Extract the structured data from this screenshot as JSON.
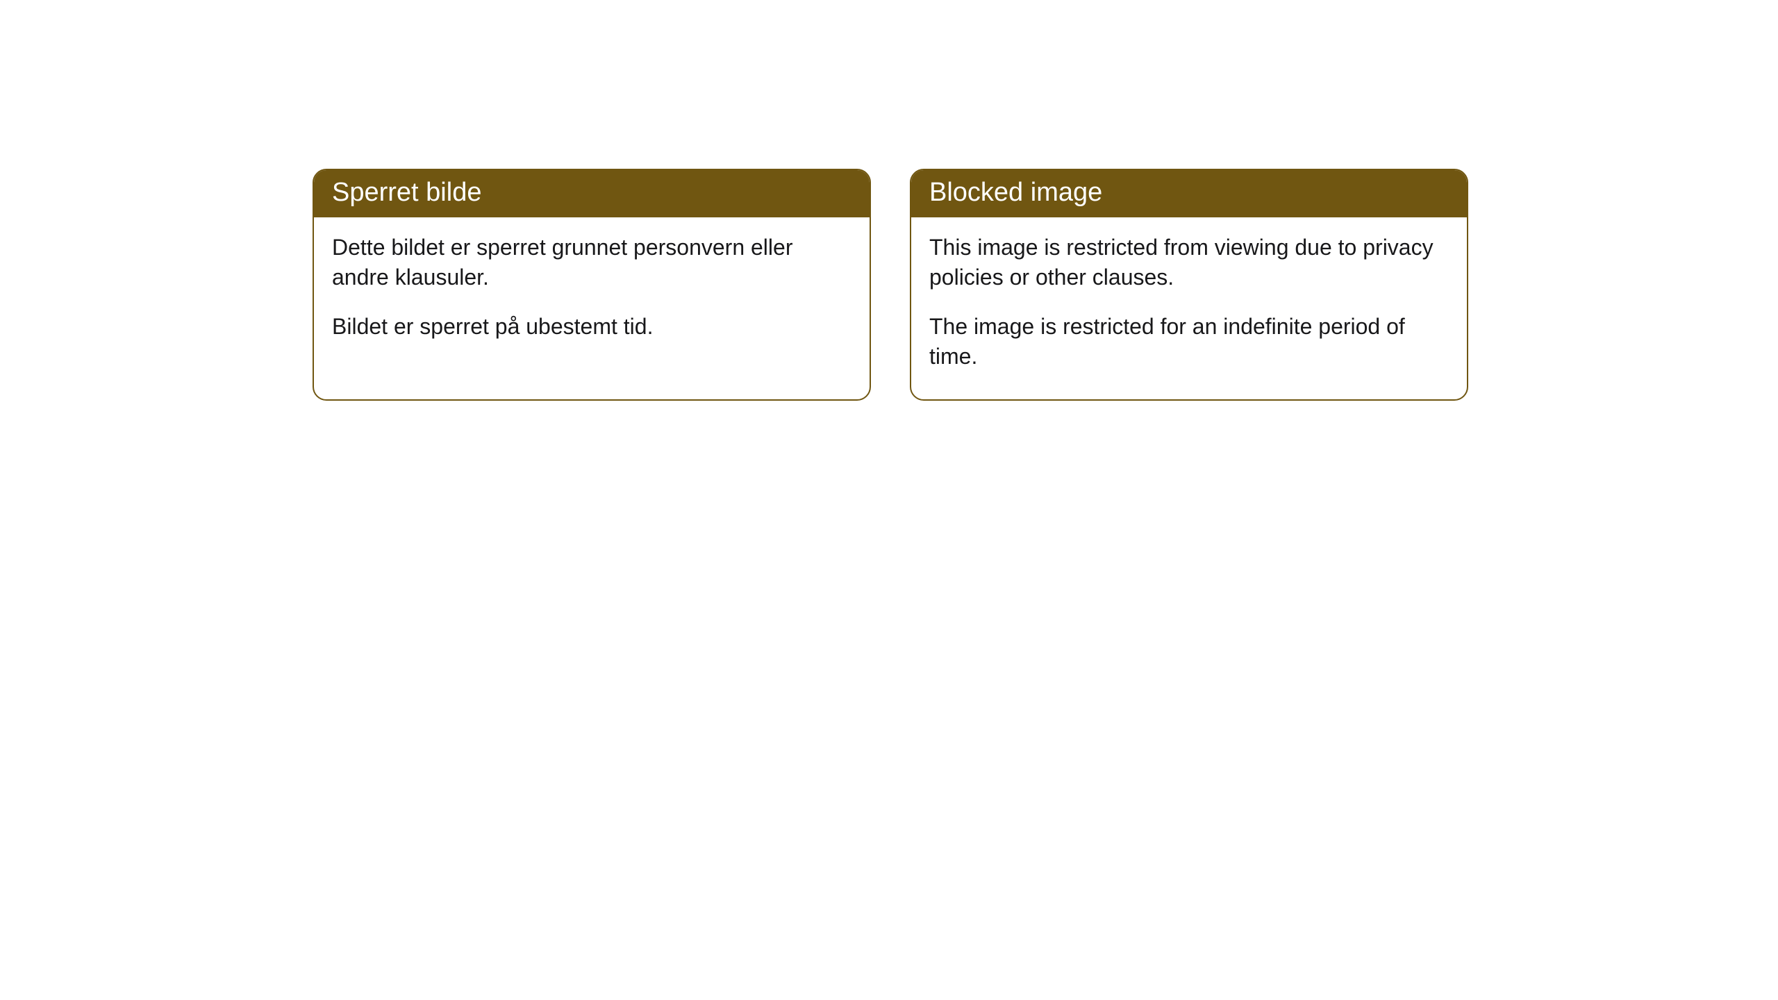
{
  "styling": {
    "header_background": "#705611",
    "header_text_color": "#ffffff",
    "border_color": "#705611",
    "body_background": "#ffffff",
    "body_text_color": "#18181a",
    "border_radius": 20,
    "header_fontsize": 38,
    "body_fontsize": 32
  },
  "cards": [
    {
      "title": "Sperret bilde",
      "paragraph1": "Dette bildet er sperret grunnet personvern eller andre klausuler.",
      "paragraph2": "Bildet er sperret på ubestemt tid."
    },
    {
      "title": "Blocked image",
      "paragraph1": "This image is restricted from viewing due to privacy policies or other clauses.",
      "paragraph2": "The image is restricted for an indefinite period of time."
    }
  ]
}
